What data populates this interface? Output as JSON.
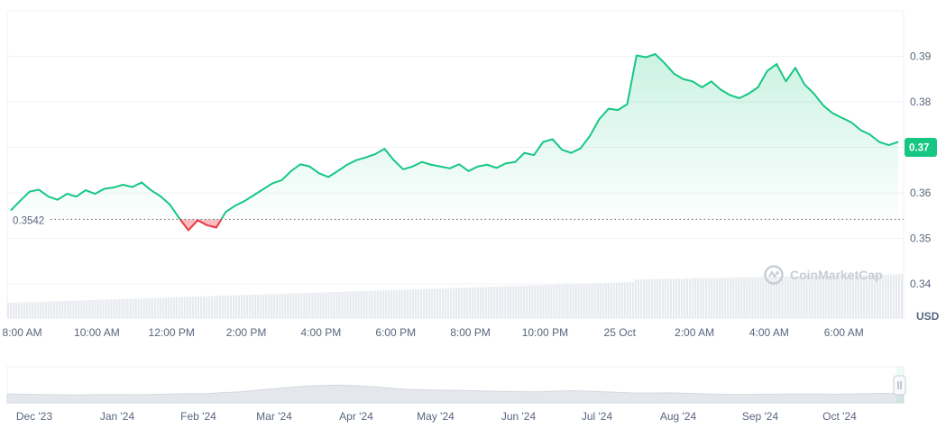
{
  "watermark": {
    "text": "CoinMarketCap",
    "icon": "coinmarketcap-logo-icon"
  },
  "colors": {
    "up": "#16c784",
    "down": "#ea3943",
    "grid": "#eff2f5",
    "axis_text": "#58667e",
    "volume": "#e6e9ee",
    "navigator_fill": "#e4e7ec"
  },
  "chart_data": {
    "type": "area",
    "unit_label": "USD",
    "reference_value": 0.3542,
    "reference_label": "0.3542",
    "current_value": 0.37,
    "current_label": "0.37",
    "ylim": [
      0.3325,
      0.4
    ],
    "y_ticks": [
      0.34,
      0.35,
      0.36,
      0.37,
      0.38,
      0.39
    ],
    "y_tick_labels": [
      "0.34",
      "0.35",
      "0.36",
      "0.37",
      "0.38",
      "0.39"
    ],
    "x_tick_labels": [
      "8:00 AM",
      "10:00 AM",
      "12:00 PM",
      "2:00 PM",
      "4:00 PM",
      "6:00 PM",
      "8:00 PM",
      "10:00 PM",
      "25 Oct",
      "2:00 AM",
      "4:00 AM",
      "6:00 AM"
    ],
    "x_tick_hours": [
      8,
      10,
      12,
      14,
      16,
      18,
      20,
      22,
      24,
      26,
      28,
      30
    ],
    "x_range_hours": [
      7.6,
      31.6
    ],
    "series": [
      {
        "x": [
          7.7,
          7.95,
          8.2,
          8.45,
          8.7,
          8.95,
          9.2,
          9.45,
          9.7,
          9.95,
          10.2,
          10.45,
          10.7,
          10.95,
          11.2,
          11.45,
          11.7,
          11.95,
          12.2,
          12.45,
          12.7,
          12.95,
          13.2,
          13.45,
          13.7,
          13.95,
          14.2,
          14.45,
          14.7,
          14.95,
          15.2,
          15.45,
          15.7,
          15.95,
          16.2,
          16.45,
          16.7,
          16.95,
          17.2,
          17.45,
          17.7,
          17.95,
          18.2,
          18.45,
          18.7,
          18.95,
          19.2,
          19.45,
          19.7,
          19.95,
          20.2,
          20.45,
          20.7,
          20.95,
          21.2,
          21.45,
          21.7,
          21.95,
          22.2,
          22.45,
          22.7,
          22.95,
          23.2,
          23.45,
          23.7,
          23.95,
          24.2,
          24.45,
          24.7,
          24.95,
          25.2,
          25.45,
          25.7,
          25.95,
          26.2,
          26.45,
          26.7,
          26.95,
          27.2,
          27.45,
          27.7,
          27.95,
          28.2,
          28.45,
          28.7,
          28.95,
          29.2,
          29.45,
          29.7,
          29.95,
          30.2,
          30.45,
          30.7,
          30.95,
          31.2,
          31.45
        ],
        "values": [
          0.3562,
          0.3583,
          0.3603,
          0.3607,
          0.3592,
          0.3585,
          0.3598,
          0.3592,
          0.3606,
          0.3598,
          0.3609,
          0.3612,
          0.3618,
          0.3613,
          0.3623,
          0.3606,
          0.3593,
          0.3575,
          0.3545,
          0.3518,
          0.354,
          0.3529,
          0.3524,
          0.3558,
          0.3572,
          0.3582,
          0.3595,
          0.3608,
          0.3621,
          0.3628,
          0.3648,
          0.3663,
          0.3658,
          0.3643,
          0.3635,
          0.3648,
          0.3662,
          0.3672,
          0.3678,
          0.3685,
          0.3697,
          0.3672,
          0.3652,
          0.3658,
          0.3668,
          0.3662,
          0.3658,
          0.3654,
          0.3663,
          0.3648,
          0.3658,
          0.3662,
          0.3655,
          0.3665,
          0.3668,
          0.3688,
          0.3683,
          0.3712,
          0.3718,
          0.3695,
          0.3688,
          0.3698,
          0.3725,
          0.3762,
          0.3785,
          0.3782,
          0.3795,
          0.3902,
          0.3898,
          0.3905,
          0.3885,
          0.3862,
          0.385,
          0.3845,
          0.3832,
          0.3845,
          0.3827,
          0.3815,
          0.3808,
          0.3818,
          0.3832,
          0.3868,
          0.3883,
          0.3845,
          0.3875,
          0.3838,
          0.3818,
          0.3792,
          0.3775,
          0.3765,
          0.3755,
          0.3738,
          0.3728,
          0.3712,
          0.3705,
          0.3712
        ]
      }
    ],
    "navigator": {
      "x_tick_labels": [
        "Dec '23",
        "Jan '24",
        "Feb '24",
        "Mar '24",
        "Apr '24",
        "May '24",
        "Jun '24",
        "Jul '24",
        "Aug '24",
        "Sep '24",
        "Oct '24"
      ],
      "values": [
        0.33,
        0.31,
        0.29,
        0.31,
        0.3,
        0.33,
        0.34,
        0.41,
        0.52,
        0.62,
        0.66,
        0.6,
        0.5,
        0.47,
        0.45,
        0.42,
        0.41,
        0.45,
        0.41,
        0.36,
        0.37,
        0.33,
        0.31,
        0.32,
        0.33,
        0.32,
        0.34,
        0.36
      ],
      "handle_icon": "drag-handle-icon"
    }
  }
}
